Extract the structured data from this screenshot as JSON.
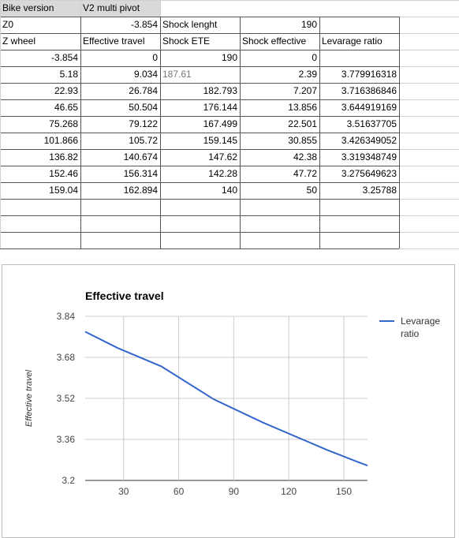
{
  "sheet": {
    "rows": [
      [
        "Bike version",
        "V2 multi pivot",
        "",
        "",
        ""
      ],
      [
        "Z0",
        "-3.854",
        "Shock lenght",
        "190",
        ""
      ],
      [
        "Z wheel",
        "Effective travel",
        "Shock ETE",
        "Shock effective",
        "Levarage ratio"
      ],
      [
        "-3.854",
        "0",
        "190",
        "0",
        ""
      ],
      [
        "5.18",
        "9.034",
        "187.61",
        "2.39",
        "3.779916318"
      ],
      [
        "22.93",
        "26.784",
        "182.793",
        "7.207",
        "3.716386846"
      ],
      [
        "46.65",
        "50.504",
        "176.144",
        "13.856",
        "3.644919169"
      ],
      [
        "75.268",
        "79.122",
        "167.499",
        "22.501",
        "3.51637705"
      ],
      [
        "101.866",
        "105.72",
        "159.145",
        "30.855",
        "3.426349052"
      ],
      [
        "136.82",
        "140.674",
        "147.62",
        "42.38",
        "3.319348749"
      ],
      [
        "152.46",
        "156.314",
        "142.28",
        "47.72",
        "3.275649623"
      ],
      [
        "159.04",
        "162.894",
        "140",
        "50",
        "3.25788"
      ]
    ]
  },
  "chart_data": {
    "type": "line",
    "title": "Effective travel",
    "y_label": "Effective travel",
    "x": [
      9.034,
      26.784,
      50.504,
      79.122,
      105.72,
      140.674,
      156.314,
      162.894
    ],
    "series": [
      {
        "name": "Levarage ratio",
        "color": "#3366cc",
        "values": [
          3.779916318,
          3.716386846,
          3.644919169,
          3.51637705,
          3.426349052,
          3.319348749,
          3.275649623,
          3.25788
        ]
      }
    ],
    "xlim": [
      9.034,
      162.894
    ],
    "xticks": [
      30,
      60,
      90,
      120,
      150
    ],
    "ylim": [
      3.2,
      3.84
    ],
    "yticks": [
      3.2,
      3.36,
      3.52,
      3.68,
      3.84
    ],
    "grid": true,
    "legend": "right"
  }
}
